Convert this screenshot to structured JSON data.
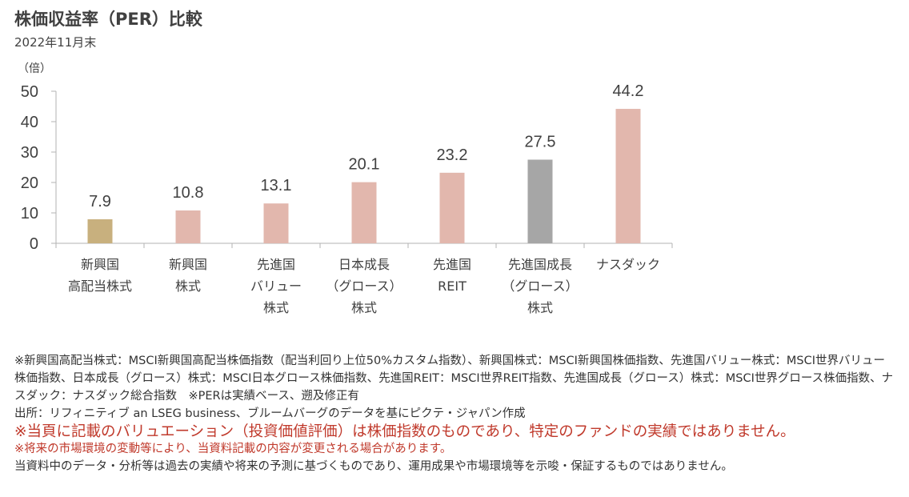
{
  "header": {
    "title": "株価収益率（PER）比較",
    "subtitle": "2022年11月末"
  },
  "chart_data": {
    "type": "bar",
    "title": "株価収益率（PER）比較",
    "subtitle": "2022年11月末",
    "ylabel": "（倍）",
    "xlabel": "",
    "ylim": [
      0,
      50
    ],
    "yticks": [
      0,
      10,
      20,
      30,
      40,
      50
    ],
    "grid": false,
    "legend": "none",
    "categories": [
      [
        "新興国",
        "高配当株式"
      ],
      [
        "新興国",
        "株式"
      ],
      [
        "先進国",
        "バリュー",
        "株式"
      ],
      [
        "日本成長",
        "（グロース）",
        "株式"
      ],
      [
        "先進国",
        "REIT"
      ],
      [
        "先進国成長",
        "（グロース）",
        "株式"
      ],
      [
        "ナスダック"
      ]
    ],
    "values": [
      7.9,
      10.8,
      13.1,
      20.1,
      23.2,
      27.5,
      44.2
    ],
    "data_labels": [
      "7.9",
      "10.8",
      "13.1",
      "20.1",
      "23.2",
      "27.5",
      "44.2"
    ],
    "colors": [
      "#c8b07e",
      "#e2b7ad",
      "#e2b7ad",
      "#e2b7ad",
      "#e2b7ad",
      "#a6a6a6",
      "#e2b7ad"
    ]
  },
  "notes": {
    "definition": "※新興国高配当株式：MSCI新興国高配当株価指数（配当利回り上位50%カスタム指数）、新興国株式：MSCI新興国株価指数、先進国バリュー株式：MSCI世界バリュー株価指数、日本成長（グロース）株式：MSCI日本グロース株価指数、先進国REIT：MSCI世界REIT指数、先進国成長（グロース）株式：MSCI世界グロース株価指数、ナスダック：ナスダック総合指数　※PERは実績ベース、遡及修正有",
    "source": "出所：リフィニティブ an LSEG business、ブルームバーグのデータを基にピクテ・ジャパン作成",
    "warning_big": "※当頁に記載のバリュエーション（投資価値評価）は株価指数のものであり、特定のファンドの実績ではありません。",
    "warning_small": "※将来の市場環境の変動等により、当資料記載の内容が変更される場合があります。",
    "disclaimer": "当資料中のデータ・分析等は過去の実績や将来の予測に基づくものであり、運用成果や市場環境等を示唆・保証するものではありません。"
  }
}
